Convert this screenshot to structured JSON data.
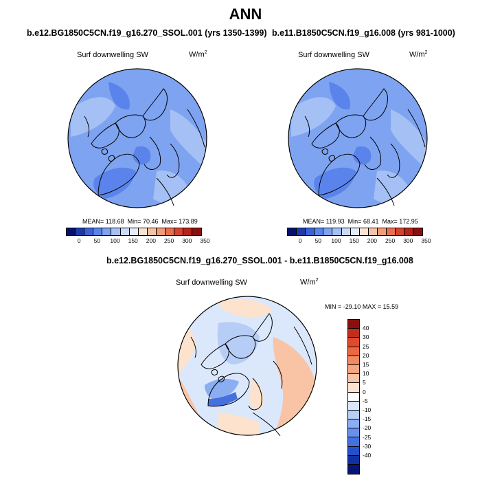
{
  "title": "ANN",
  "panels": {
    "left": {
      "case": "b.e12.BG1850C5CN.f19_g16.270_SSOL.001 (yrs 1350-1399)",
      "variable": "Surf downwelling SW",
      "units_base": "W/m",
      "units_exp": "2",
      "mean_label": "MEAN=",
      "mean": "118.68",
      "min_label": "Min=",
      "min": "70.46",
      "max_label": "Max=",
      "max": "173.89"
    },
    "right": {
      "case": "b.e11.B1850C5CN.f19_g16.008 (yrs 981-1000)",
      "variable": "Surf downwelling SW",
      "units_base": "W/m",
      "units_exp": "2",
      "mean_label": "MEAN=",
      "mean": "119.93",
      "min_label": "Min=",
      "min": "68.41",
      "max_label": "Max=",
      "max": "172.95"
    },
    "diff": {
      "case": "b.e12.BG1850C5CN.f19_g16.270_SSOL.001 - b.e11.B1850C5CN.f19_g16.008",
      "variable": "Surf downwelling SW",
      "units_base": "W/m",
      "units_exp": "2",
      "min_label": "MIN =",
      "min": "-29.10",
      "max_label": "MAX =",
      "max": "15.59"
    }
  },
  "colorbars": {
    "abs": {
      "ticks": [
        "0",
        "50",
        "100",
        "150",
        "200",
        "250",
        "300",
        "350"
      ],
      "colors": [
        "#06116b",
        "#1d3ba6",
        "#3c63d6",
        "#5a84eb",
        "#7ea3f0",
        "#a4c0f4",
        "#c9daf8",
        "#e4edfb",
        "#fbe3d3",
        "#f6c2a5",
        "#f19c78",
        "#e8704e",
        "#d5432d",
        "#b4251c",
        "#8a0f0f"
      ]
    },
    "diff": {
      "ticks": [
        "40",
        "30",
        "25",
        "20",
        "15",
        "10",
        "5",
        "0",
        "-5",
        "-10",
        "-15",
        "-20",
        "-25",
        "-30",
        "-40"
      ],
      "colors": [
        "#8a0f0f",
        "#c12e1c",
        "#de4a2c",
        "#ec6840",
        "#f18a60",
        "#f5a781",
        "#f9c4a5",
        "#fde2cd",
        "#ffffff",
        "#dbe8fb",
        "#b6cdf6",
        "#8aaef1",
        "#6690ec",
        "#4470e0",
        "#2450c9",
        "#1230a0",
        "#061478"
      ]
    }
  },
  "colors": {
    "land_outline": "#000000",
    "left_base": "#7ea3f0",
    "right_base": "#7ea3f0",
    "diff_base": "#dbe8fb"
  }
}
